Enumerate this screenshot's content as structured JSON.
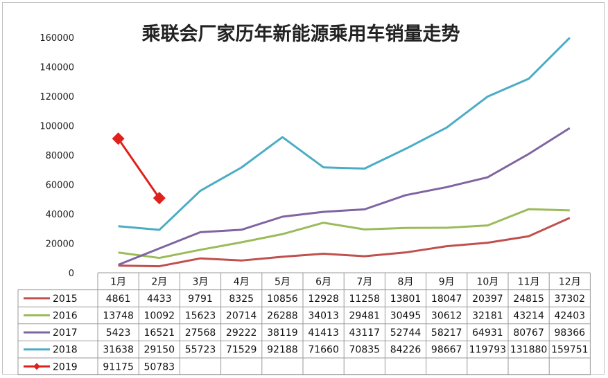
{
  "chart_data": {
    "type": "line",
    "title": "乘联会厂家历年新能源乘用车销量走势",
    "xlabel": "",
    "ylabel": "",
    "categories": [
      "1月",
      "2月",
      "3月",
      "4月",
      "5月",
      "6月",
      "7月",
      "8月",
      "9月",
      "10月",
      "11月",
      "12月"
    ],
    "ylim": [
      0,
      160000
    ],
    "yticks": [
      "0",
      "20000",
      "40000",
      "60000",
      "80000",
      "100000",
      "120000",
      "140000",
      "160000"
    ],
    "grid": false,
    "legend": "data-table",
    "series": [
      {
        "name": "2015",
        "color": "#c0504d",
        "marker": false,
        "values": [
          4861,
          4433,
          9791,
          8325,
          10856,
          12928,
          11258,
          13801,
          18047,
          20397,
          24815,
          37302
        ]
      },
      {
        "name": "2016",
        "color": "#9bbb59",
        "marker": false,
        "values": [
          13748,
          10092,
          15623,
          20714,
          26288,
          34013,
          29481,
          30495,
          30612,
          32181,
          43214,
          42403
        ]
      },
      {
        "name": "2017",
        "color": "#8064a2",
        "marker": false,
        "values": [
          5423,
          16521,
          27568,
          29222,
          38119,
          41413,
          43117,
          52744,
          58217,
          64931,
          80767,
          98366
        ]
      },
      {
        "name": "2018",
        "color": "#4bacc6",
        "marker": false,
        "values": [
          31638,
          29150,
          55723,
          71529,
          92188,
          71660,
          70835,
          84226,
          98667,
          119793,
          131880,
          159751
        ]
      },
      {
        "name": "2019",
        "color": "#e0201b",
        "marker": true,
        "values": [
          91175,
          50783,
          null,
          null,
          null,
          null,
          null,
          null,
          null,
          null,
          null,
          null
        ]
      }
    ]
  }
}
